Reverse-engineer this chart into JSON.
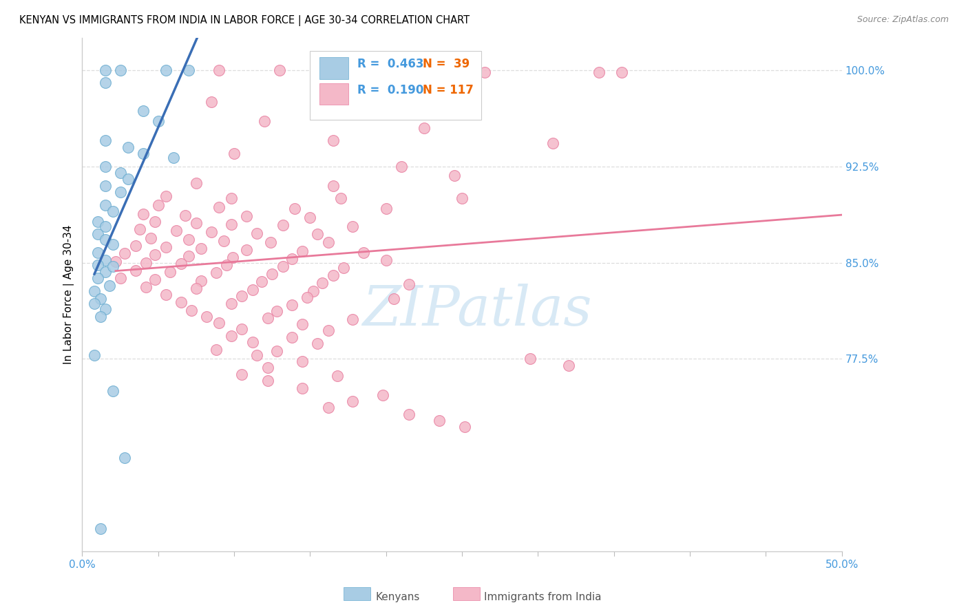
{
  "title": "KENYAN VS IMMIGRANTS FROM INDIA IN LABOR FORCE | AGE 30-34 CORRELATION CHART",
  "source": "Source: ZipAtlas.com",
  "ylabel": "In Labor Force | Age 30-34",
  "xlim": [
    0.0,
    0.5
  ],
  "ylim": [
    0.625,
    1.025
  ],
  "xticks": [
    0.0,
    0.05,
    0.1,
    0.15,
    0.2,
    0.25,
    0.3,
    0.35,
    0.4,
    0.45,
    0.5
  ],
  "xticklabels": [
    "0.0%",
    "",
    "",
    "",
    "",
    "",
    "",
    "",
    "",
    "",
    "50.0%"
  ],
  "yticks_right": [
    0.775,
    0.85,
    0.925,
    1.0
  ],
  "ytick_right_labels": [
    "77.5%",
    "85.0%",
    "92.5%",
    "100.0%"
  ],
  "blue_color": "#a8cce4",
  "pink_color": "#f4b8c8",
  "blue_edge_color": "#6aacd0",
  "pink_edge_color": "#e87fa0",
  "blue_line_color": "#3a6eb5",
  "pink_line_color": "#e8799a",
  "blue_label": "Kenyans",
  "pink_label": "Immigrants from India",
  "r_color": "#4499dd",
  "n_color": "#ee6600",
  "watermark_color": "#b8d8ee",
  "axis_tick_color": "#4499dd",
  "grid_color": "#dddddd",
  "blue_scatter": [
    [
      0.015,
      1.0
    ],
    [
      0.025,
      1.0
    ],
    [
      0.055,
      1.0
    ],
    [
      0.07,
      1.0
    ],
    [
      0.015,
      0.99
    ],
    [
      0.04,
      0.968
    ],
    [
      0.05,
      0.96
    ],
    [
      0.015,
      0.945
    ],
    [
      0.03,
      0.94
    ],
    [
      0.04,
      0.935
    ],
    [
      0.06,
      0.932
    ],
    [
      0.015,
      0.925
    ],
    [
      0.025,
      0.92
    ],
    [
      0.03,
      0.915
    ],
    [
      0.015,
      0.91
    ],
    [
      0.025,
      0.905
    ],
    [
      0.015,
      0.895
    ],
    [
      0.02,
      0.89
    ],
    [
      0.01,
      0.882
    ],
    [
      0.015,
      0.878
    ],
    [
      0.01,
      0.872
    ],
    [
      0.015,
      0.868
    ],
    [
      0.02,
      0.864
    ],
    [
      0.01,
      0.858
    ],
    [
      0.015,
      0.852
    ],
    [
      0.01,
      0.848
    ],
    [
      0.015,
      0.843
    ],
    [
      0.02,
      0.847
    ],
    [
      0.01,
      0.838
    ],
    [
      0.018,
      0.832
    ],
    [
      0.008,
      0.828
    ],
    [
      0.012,
      0.822
    ],
    [
      0.008,
      0.818
    ],
    [
      0.015,
      0.814
    ],
    [
      0.012,
      0.808
    ],
    [
      0.008,
      0.778
    ],
    [
      0.02,
      0.75
    ],
    [
      0.028,
      0.698
    ],
    [
      0.012,
      0.643
    ]
  ],
  "pink_scatter": [
    [
      0.09,
      1.0
    ],
    [
      0.13,
      1.0
    ],
    [
      0.165,
      1.0
    ],
    [
      0.19,
      1.0
    ],
    [
      0.23,
      0.998
    ],
    [
      0.265,
      0.998
    ],
    [
      0.34,
      0.998
    ],
    [
      0.355,
      0.998
    ],
    [
      0.085,
      0.975
    ],
    [
      0.12,
      0.96
    ],
    [
      0.225,
      0.955
    ],
    [
      0.165,
      0.945
    ],
    [
      0.31,
      0.943
    ],
    [
      0.1,
      0.935
    ],
    [
      0.21,
      0.925
    ],
    [
      0.245,
      0.918
    ],
    [
      0.075,
      0.912
    ],
    [
      0.165,
      0.91
    ],
    [
      0.055,
      0.902
    ],
    [
      0.098,
      0.9
    ],
    [
      0.17,
      0.9
    ],
    [
      0.25,
      0.9
    ],
    [
      0.05,
      0.895
    ],
    [
      0.09,
      0.893
    ],
    [
      0.14,
      0.892
    ],
    [
      0.2,
      0.892
    ],
    [
      0.04,
      0.888
    ],
    [
      0.068,
      0.887
    ],
    [
      0.108,
      0.886
    ],
    [
      0.15,
      0.885
    ],
    [
      0.048,
      0.882
    ],
    [
      0.075,
      0.881
    ],
    [
      0.098,
      0.88
    ],
    [
      0.132,
      0.879
    ],
    [
      0.178,
      0.878
    ],
    [
      0.038,
      0.876
    ],
    [
      0.062,
      0.875
    ],
    [
      0.085,
      0.874
    ],
    [
      0.115,
      0.873
    ],
    [
      0.155,
      0.872
    ],
    [
      0.045,
      0.869
    ],
    [
      0.07,
      0.868
    ],
    [
      0.093,
      0.867
    ],
    [
      0.124,
      0.866
    ],
    [
      0.162,
      0.866
    ],
    [
      0.035,
      0.863
    ],
    [
      0.055,
      0.862
    ],
    [
      0.078,
      0.861
    ],
    [
      0.108,
      0.86
    ],
    [
      0.145,
      0.859
    ],
    [
      0.185,
      0.858
    ],
    [
      0.028,
      0.857
    ],
    [
      0.048,
      0.856
    ],
    [
      0.07,
      0.855
    ],
    [
      0.099,
      0.854
    ],
    [
      0.138,
      0.853
    ],
    [
      0.2,
      0.852
    ],
    [
      0.022,
      0.851
    ],
    [
      0.042,
      0.85
    ],
    [
      0.065,
      0.849
    ],
    [
      0.095,
      0.848
    ],
    [
      0.132,
      0.847
    ],
    [
      0.172,
      0.846
    ],
    [
      0.035,
      0.844
    ],
    [
      0.058,
      0.843
    ],
    [
      0.088,
      0.842
    ],
    [
      0.125,
      0.841
    ],
    [
      0.165,
      0.84
    ],
    [
      0.025,
      0.838
    ],
    [
      0.048,
      0.837
    ],
    [
      0.078,
      0.836
    ],
    [
      0.118,
      0.835
    ],
    [
      0.158,
      0.834
    ],
    [
      0.215,
      0.833
    ],
    [
      0.042,
      0.831
    ],
    [
      0.075,
      0.83
    ],
    [
      0.112,
      0.829
    ],
    [
      0.152,
      0.828
    ],
    [
      0.055,
      0.825
    ],
    [
      0.105,
      0.824
    ],
    [
      0.148,
      0.823
    ],
    [
      0.205,
      0.822
    ],
    [
      0.065,
      0.819
    ],
    [
      0.098,
      0.818
    ],
    [
      0.138,
      0.817
    ],
    [
      0.072,
      0.813
    ],
    [
      0.128,
      0.812
    ],
    [
      0.082,
      0.808
    ],
    [
      0.122,
      0.807
    ],
    [
      0.178,
      0.806
    ],
    [
      0.09,
      0.803
    ],
    [
      0.145,
      0.802
    ],
    [
      0.105,
      0.798
    ],
    [
      0.162,
      0.797
    ],
    [
      0.098,
      0.793
    ],
    [
      0.138,
      0.792
    ],
    [
      0.112,
      0.788
    ],
    [
      0.155,
      0.787
    ],
    [
      0.088,
      0.782
    ],
    [
      0.128,
      0.781
    ],
    [
      0.115,
      0.778
    ],
    [
      0.145,
      0.773
    ],
    [
      0.122,
      0.768
    ],
    [
      0.105,
      0.763
    ],
    [
      0.168,
      0.762
    ],
    [
      0.122,
      0.758
    ],
    [
      0.145,
      0.752
    ],
    [
      0.198,
      0.747
    ],
    [
      0.178,
      0.742
    ],
    [
      0.162,
      0.737
    ],
    [
      0.215,
      0.732
    ],
    [
      0.235,
      0.727
    ],
    [
      0.252,
      0.722
    ],
    [
      0.295,
      0.775
    ],
    [
      0.32,
      0.77
    ]
  ]
}
